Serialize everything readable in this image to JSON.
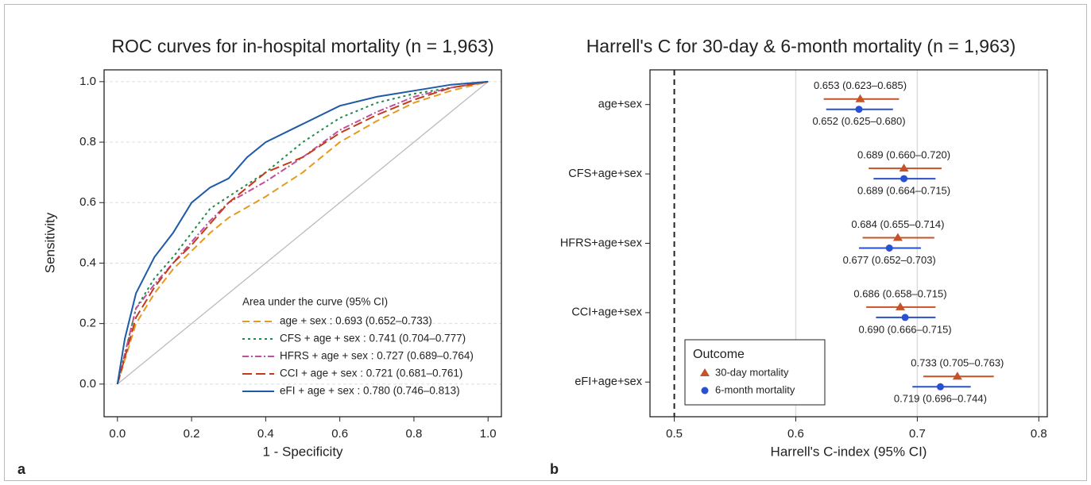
{
  "chart_data": [
    {
      "type": "line",
      "title": "ROC curves for in-hospital mortality (n = 1,963)",
      "panel_label": "a",
      "x_label": "1 - Specificity",
      "y_label": "Sensitivity",
      "legend_title": "Area under the curve (95% CI)",
      "grid": true,
      "xlim": [
        -0.036,
        1.036
      ],
      "ylim": [
        -0.108,
        1.039
      ],
      "xticks": [
        {
          "value": 0,
          "label": "0.0"
        },
        0.2,
        0.4,
        0.6,
        0.8,
        {
          "value": 1,
          "label": "1.0"
        }
      ],
      "yticks": [
        {
          "value": 0,
          "label": "0.0"
        },
        0.2,
        0.4,
        0.6,
        0.8,
        {
          "value": 1,
          "label": "1.0"
        }
      ],
      "series": [
        {
          "name": "age + sex : 0.693 (0.652–0.733)",
          "color": "#e69a1e",
          "dash": "9,5",
          "x": [
            0,
            0.05,
            0.1,
            0.15,
            0.2,
            0.25,
            0.3,
            0.4,
            0.5,
            0.6,
            0.7,
            0.8,
            0.9,
            1
          ],
          "values": [
            0,
            0.2,
            0.3,
            0.38,
            0.44,
            0.5,
            0.55,
            0.62,
            0.7,
            0.8,
            0.87,
            0.93,
            0.97,
            1
          ]
        },
        {
          "name": "CFS + age + sex : 0.741 (0.704–0.777)",
          "color": "#1f8a4c",
          "dash": "3,4",
          "x": [
            0,
            0.05,
            0.1,
            0.15,
            0.2,
            0.25,
            0.3,
            0.4,
            0.5,
            0.6,
            0.7,
            0.8,
            0.9,
            1
          ],
          "values": [
            0,
            0.25,
            0.35,
            0.42,
            0.5,
            0.58,
            0.62,
            0.7,
            0.8,
            0.88,
            0.93,
            0.96,
            0.98,
            1
          ]
        },
        {
          "name": "HFRS + age + sex : 0.727 (0.689–0.764)",
          "color": "#c0509a",
          "dash": "8,3,2,3",
          "x": [
            0,
            0.05,
            0.1,
            0.15,
            0.2,
            0.25,
            0.3,
            0.4,
            0.5,
            0.6,
            0.7,
            0.8,
            0.9,
            1
          ],
          "values": [
            0,
            0.25,
            0.33,
            0.4,
            0.47,
            0.54,
            0.6,
            0.67,
            0.75,
            0.84,
            0.9,
            0.95,
            0.98,
            1
          ]
        },
        {
          "name": "CCI + age + sex : 0.721 (0.681–0.761)",
          "color": "#c23b1c",
          "dash": "12,5",
          "x": [
            0,
            0.05,
            0.1,
            0.15,
            0.2,
            0.25,
            0.3,
            0.4,
            0.5,
            0.6,
            0.7,
            0.8,
            0.9,
            1
          ],
          "values": [
            0,
            0.22,
            0.32,
            0.4,
            0.46,
            0.53,
            0.6,
            0.7,
            0.75,
            0.83,
            0.89,
            0.94,
            0.98,
            1
          ]
        },
        {
          "name": "eFI + age + sex : 0.780 (0.746–0.813)",
          "color": "#1f5aa6",
          "dash": "none",
          "x": [
            0,
            0.02,
            0.05,
            0.1,
            0.15,
            0.2,
            0.25,
            0.3,
            0.35,
            0.4,
            0.5,
            0.6,
            0.7,
            0.8,
            0.9,
            1
          ],
          "values": [
            0,
            0.15,
            0.3,
            0.42,
            0.5,
            0.6,
            0.65,
            0.68,
            0.75,
            0.8,
            0.86,
            0.92,
            0.95,
            0.97,
            0.99,
            1
          ]
        }
      ]
    },
    {
      "type": "forest",
      "title": "Harrell's C for 30-day & 6-month mortality (n = 1,963)",
      "panel_label": "b",
      "x_label": "Harrell's C-index (95% CI)",
      "legend_title": "Outcome",
      "grid": true,
      "ref_line": 0.5,
      "xlim": [
        0.48,
        0.807
      ],
      "xticks": [
        0.5,
        0.6,
        0.7,
        0.8
      ],
      "categories": [
        "age+sex",
        "CFS+age+sex",
        "HFRS+age+sex",
        "CCI+age+sex",
        "eFI+age+sex"
      ],
      "series": [
        {
          "name": "30-day mortality",
          "color": "#c4532a",
          "marker": "triangle",
          "values": [
            0.653,
            0.689,
            0.684,
            0.686,
            0.733
          ],
          "lower": [
            0.623,
            0.66,
            0.655,
            0.658,
            0.705
          ],
          "upper": [
            0.685,
            0.72,
            0.714,
            0.715,
            0.763
          ],
          "value_labels": [
            "0.653 (0.623–0.685)",
            "0.689 (0.660–0.720)",
            "0.684 (0.655–0.714)",
            "0.686 (0.658–0.715)",
            "0.733 (0.705–0.763)"
          ]
        },
        {
          "name": "6-month mortality",
          "color": "#2850d0",
          "marker": "circle",
          "values": [
            0.652,
            0.689,
            0.677,
            0.69,
            0.719
          ],
          "lower": [
            0.625,
            0.664,
            0.652,
            0.666,
            0.696
          ],
          "upper": [
            0.68,
            0.715,
            0.703,
            0.715,
            0.744
          ],
          "value_labels": [
            "0.652 (0.625–0.680)",
            "0.689 (0.664–0.715)",
            "0.677 (0.652–0.703)",
            "0.690 (0.666–0.715)",
            "0.719 (0.696–0.744)"
          ]
        }
      ]
    }
  ]
}
